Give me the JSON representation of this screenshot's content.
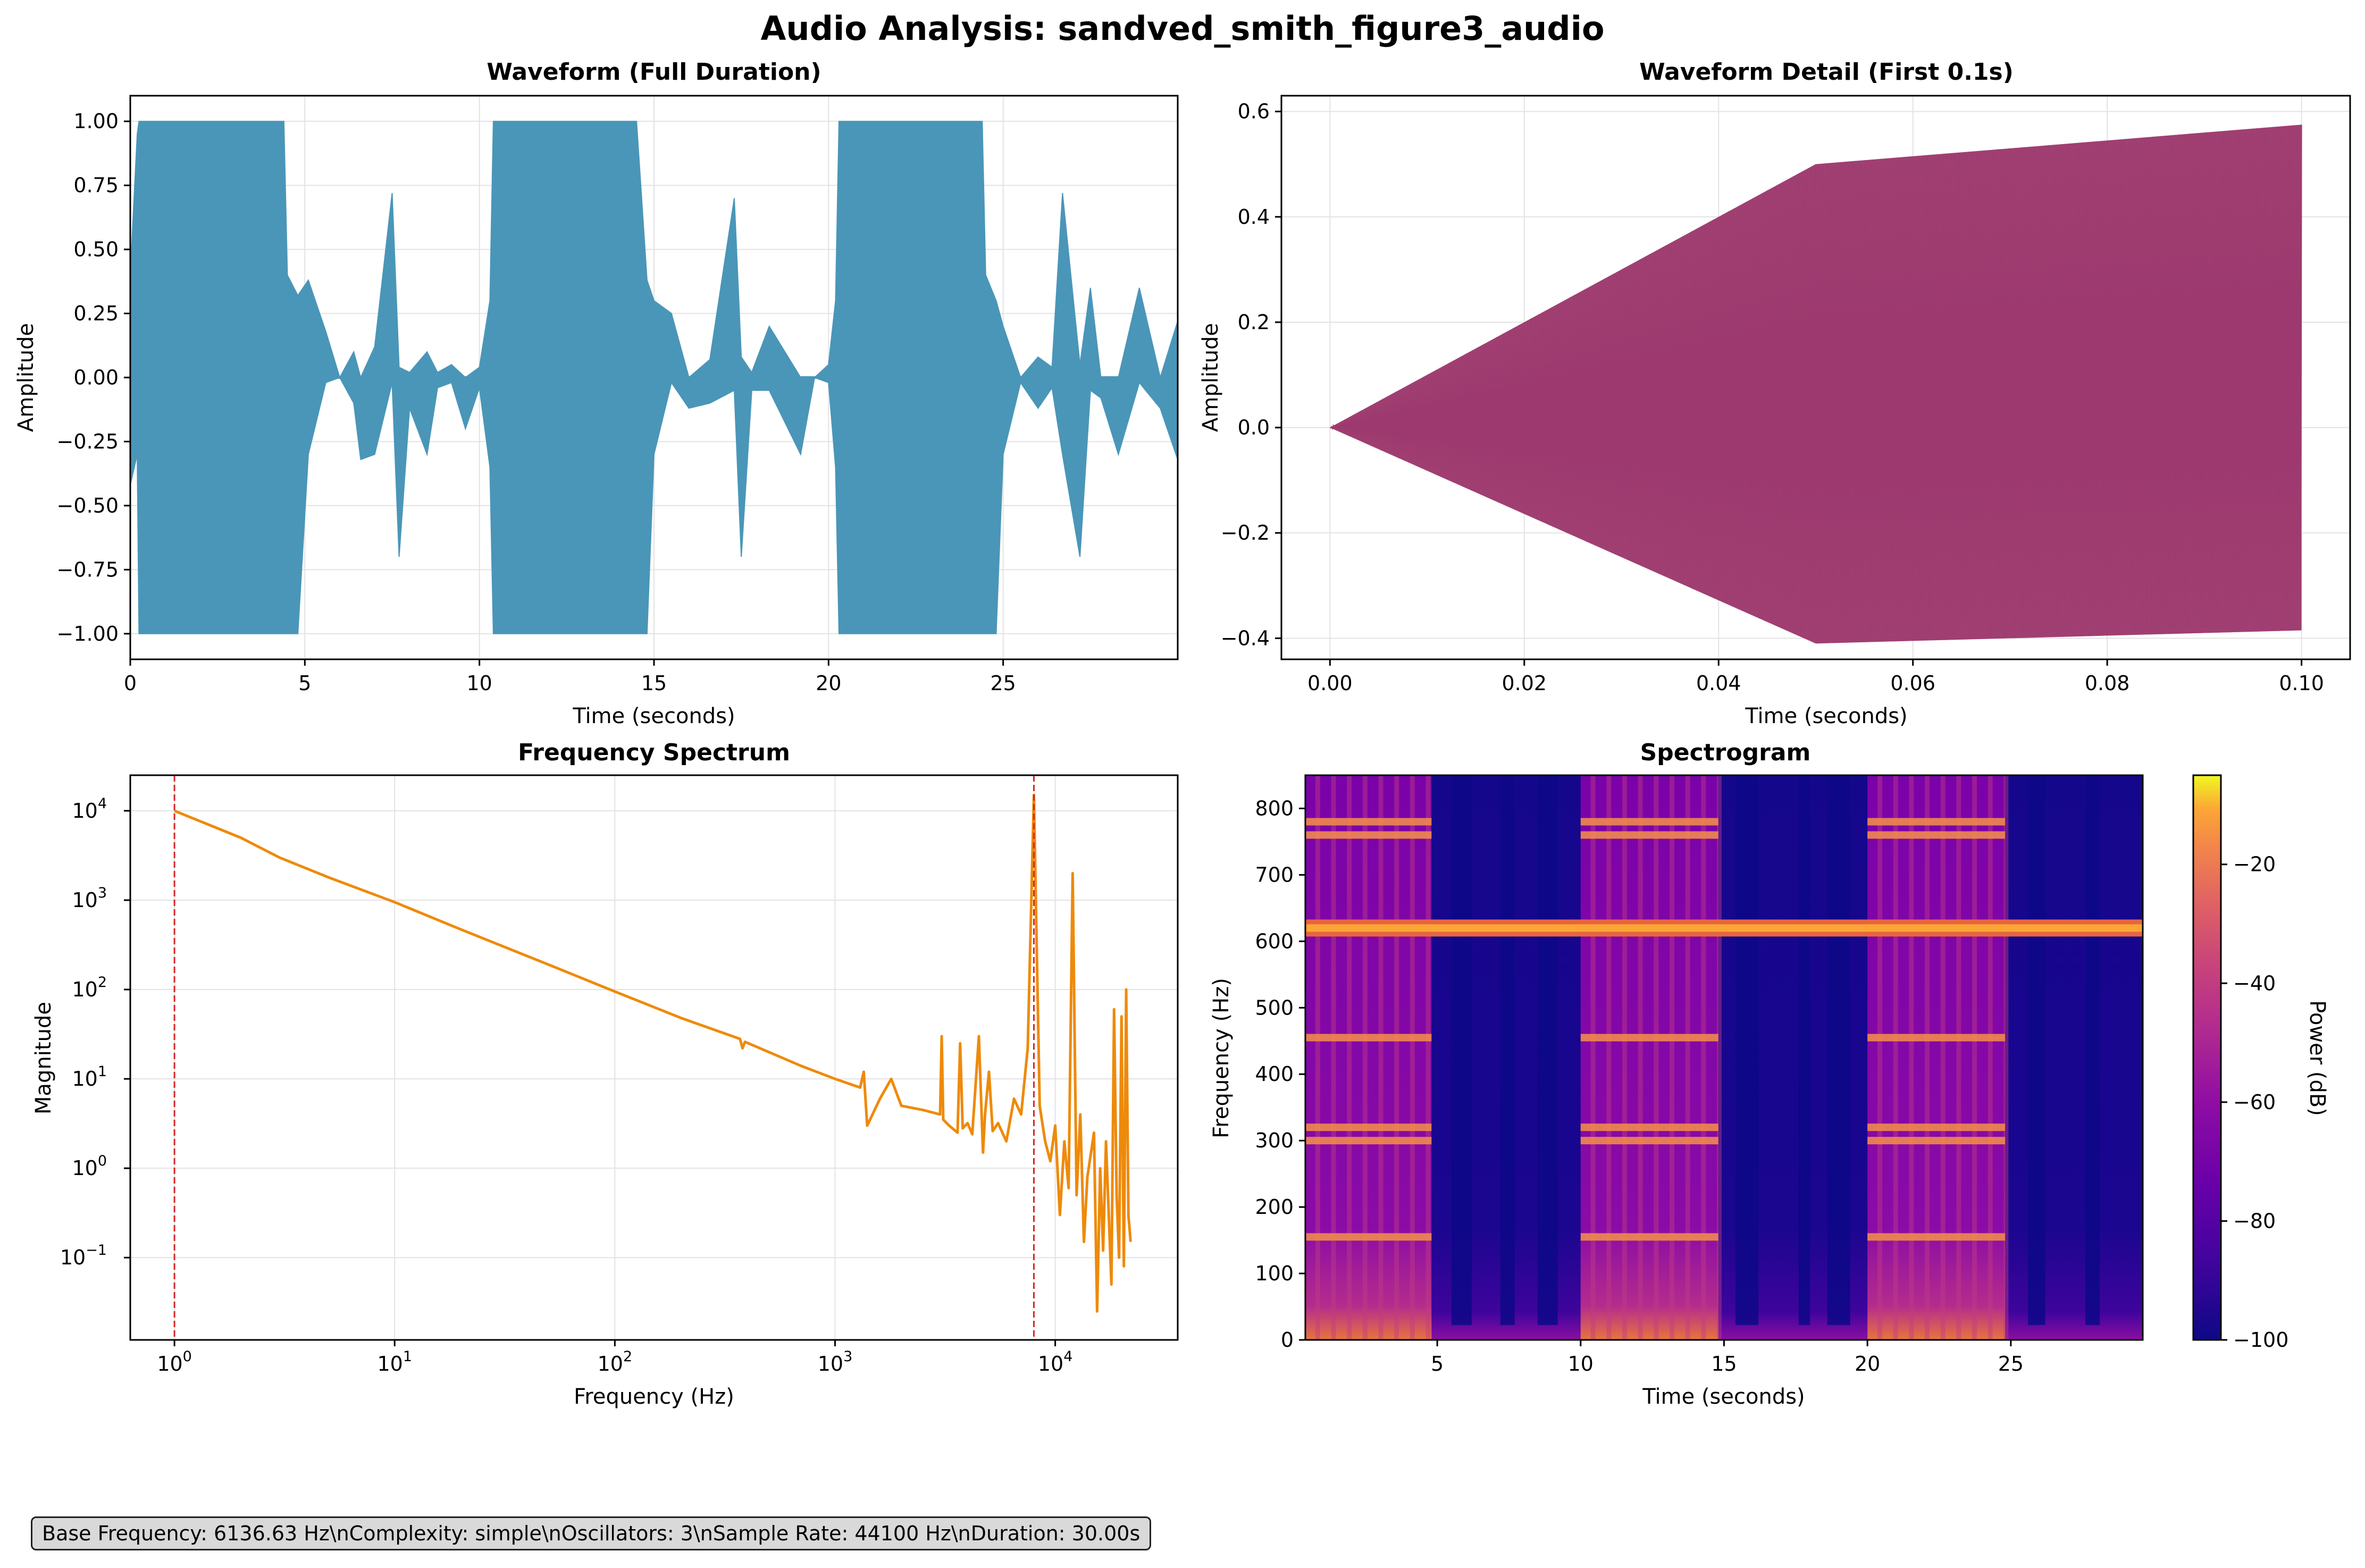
{
  "figure": {
    "title": "Audio Analysis: sandved_smith_figure3_audio",
    "info_text": "Base Frequency: 6136.63 Hz\\nComplexity: simple\\nOscillators: 3\\nSample Rate: 44100 Hz\\nDuration: 30.00s"
  },
  "colors": {
    "waveform": "#4a96b8",
    "detail": "#9d3a6e",
    "spectrum": "#ee8a0a",
    "marker": "#d62728",
    "grid": "#e3e3e3"
  },
  "chart_data": [
    {
      "type": "area",
      "title": "Waveform (Full Duration)",
      "xlabel": "Time (seconds)",
      "ylabel": "Amplitude",
      "xlim": [
        0,
        30
      ],
      "ylim": [
        -1.1,
        1.1
      ],
      "xticks": [
        0,
        5,
        10,
        15,
        20,
        25
      ],
      "xtick_labels": [
        "0",
        "5",
        "10",
        "15",
        "20",
        "25"
      ],
      "yticks": [
        -1.0,
        -0.75,
        -0.5,
        -0.25,
        0.0,
        0.25,
        0.5,
        0.75,
        1.0
      ],
      "ytick_labels": [
        "−1.00",
        "−0.75",
        "−0.50",
        "−0.25",
        "0.00",
        "0.25",
        "0.50",
        "0.75",
        "1.00"
      ],
      "grid": true,
      "envelope": {
        "t": [
          0,
          0.2,
          0.25,
          0.5,
          0.6,
          1.3,
          1.4,
          2.4,
          2.5,
          3.4,
          3.5,
          4.4,
          4.5,
          4.8,
          5.1,
          5.6,
          6.0,
          6.4,
          6.6,
          7.0,
          7.5,
          7.7,
          8.0,
          8.5,
          8.8,
          9.2,
          9.6,
          10.0,
          10.3,
          10.4,
          10.6,
          11.3,
          11.4,
          12.4,
          12.5,
          13.4,
          13.5,
          14.4,
          14.5,
          14.8,
          15.0,
          15.5,
          16.0,
          16.6,
          17.3,
          17.5,
          17.8,
          18.3,
          19.2,
          19.6,
          20.0,
          20.2,
          20.3,
          20.6,
          21.3,
          21.4,
          22.4,
          22.5,
          23.4,
          23.5,
          24.4,
          24.5,
          24.8,
          25.0,
          25.5,
          26.0,
          26.4,
          26.7,
          27.2,
          27.5,
          27.8,
          28.3,
          28.9,
          29.5,
          30.0
        ],
        "upper": [
          0.4,
          0.95,
          1.0,
          1.0,
          1.0,
          1.0,
          1.0,
          1.0,
          1.0,
          1.0,
          1.0,
          1.0,
          0.4,
          0.32,
          0.38,
          0.18,
          0.0,
          0.1,
          0.0,
          0.12,
          0.72,
          0.04,
          0.02,
          0.1,
          0.02,
          0.05,
          0.0,
          0.04,
          0.3,
          1.0,
          1.0,
          1.0,
          1.0,
          1.0,
          1.0,
          1.0,
          1.0,
          1.0,
          1.0,
          0.38,
          0.3,
          0.25,
          0.0,
          0.07,
          0.7,
          0.08,
          0.02,
          0.2,
          0.0,
          0.0,
          0.05,
          0.3,
          1.0,
          1.0,
          1.0,
          1.0,
          1.0,
          1.0,
          1.0,
          1.0,
          1.0,
          0.4,
          0.3,
          0.2,
          0.0,
          0.08,
          0.04,
          0.72,
          0.05,
          0.35,
          0.0,
          0.0,
          0.35,
          0.0,
          0.22
        ],
        "lower": [
          -0.42,
          -0.3,
          -1.0,
          -1.0,
          -1.0,
          -1.0,
          -1.0,
          -1.0,
          -1.0,
          -1.0,
          -1.0,
          -1.0,
          -1.0,
          -1.0,
          -0.3,
          -0.02,
          0.0,
          -0.1,
          -0.32,
          -0.3,
          -0.02,
          -0.7,
          -0.12,
          -0.3,
          -0.04,
          -0.02,
          -0.2,
          -0.04,
          -0.35,
          -1.0,
          -1.0,
          -1.0,
          -1.0,
          -1.0,
          -1.0,
          -1.0,
          -1.0,
          -1.0,
          -1.0,
          -1.0,
          -0.3,
          -0.02,
          -0.12,
          -0.1,
          -0.05,
          -0.7,
          -0.05,
          -0.05,
          -0.3,
          0.0,
          -0.02,
          -0.35,
          -1.0,
          -1.0,
          -1.0,
          -1.0,
          -1.0,
          -1.0,
          -1.0,
          -1.0,
          -1.0,
          -1.0,
          -1.0,
          -0.3,
          -0.02,
          -0.12,
          -0.04,
          -0.3,
          -0.7,
          -0.05,
          -0.08,
          -0.3,
          -0.02,
          -0.12,
          -0.32
        ]
      }
    },
    {
      "type": "area",
      "title": "Waveform Detail (First 0.1s)",
      "xlabel": "Time (seconds)",
      "ylabel": "Amplitude",
      "xlim": [
        -0.005,
        0.105
      ],
      "ylim": [
        -0.44,
        0.63
      ],
      "xticks": [
        0.0,
        0.02,
        0.04,
        0.06,
        0.08,
        0.1
      ],
      "xtick_labels": [
        "0.00",
        "0.02",
        "0.04",
        "0.06",
        "0.08",
        "0.10"
      ],
      "yticks": [
        -0.4,
        -0.2,
        0.0,
        0.2,
        0.4,
        0.6
      ],
      "ytick_labels": [
        "−0.4",
        "−0.2",
        "0.0",
        "0.2",
        "0.4",
        "0.6"
      ],
      "grid": true,
      "envelope": {
        "t": [
          0.0,
          0.05,
          0.06,
          0.07,
          0.08,
          0.09,
          0.1
        ],
        "upper": [
          0.0,
          0.5,
          0.515,
          0.53,
          0.545,
          0.56,
          0.575
        ],
        "lower": [
          0.0,
          -0.41,
          -0.405,
          -0.4,
          -0.395,
          -0.39,
          -0.385
        ]
      }
    },
    {
      "type": "line",
      "title": "Frequency Spectrum",
      "xlabel": "Frequency (Hz)",
      "ylabel": "Magnitude",
      "xscale": "log",
      "yscale": "log",
      "xlim": [
        0.63,
        36000
      ],
      "ylim": [
        0.012,
        25000
      ],
      "xticks": [
        1,
        10,
        100,
        1000,
        10000
      ],
      "xtick_labels": [
        "10",
        "10",
        "10",
        "10",
        "10"
      ],
      "xtick_exponents": [
        "0",
        "1",
        "2",
        "3",
        "4"
      ],
      "yticks": [
        0.1,
        1,
        10,
        100,
        1000,
        10000
      ],
      "ytick_labels": [
        "10",
        "10",
        "10",
        "10",
        "10",
        "10"
      ],
      "ytick_exponents": [
        "−1",
        "0",
        "1",
        "2",
        "3",
        "4"
      ],
      "grid": true,
      "markers_x": [
        1,
        8000
      ],
      "series": [
        {
          "x": [
            1,
            2,
            3,
            5,
            10,
            20,
            50,
            100,
            200,
            370,
            380,
            390,
            700,
            1000,
            1300,
            1350,
            1400,
            1600,
            1800,
            2000,
            2500,
            3000,
            3050,
            3100,
            3300,
            3600,
            3700,
            3800,
            4000,
            4200,
            4500,
            4700,
            4800,
            5000,
            5200,
            5500,
            6000,
            6500,
            7000,
            7500,
            8000,
            8500,
            9000,
            9500,
            10000,
            10500,
            11000,
            11500,
            12000,
            12500,
            13000,
            13500,
            14000,
            15000,
            15500,
            16000,
            16500,
            17000,
            18000,
            18500,
            19000,
            19500,
            20000,
            20500,
            21000,
            21500,
            22000
          ],
          "y": [
            10000,
            5000,
            3000,
            1800,
            950,
            470,
            190,
            95,
            48,
            28,
            22,
            26,
            14,
            10,
            8,
            12,
            3,
            6,
            10,
            5,
            4.5,
            4,
            30,
            3.5,
            3,
            2.5,
            25,
            2.8,
            3.2,
            2.4,
            30,
            1.5,
            4,
            12,
            2.6,
            3.2,
            2,
            6,
            4,
            22,
            15000,
            5,
            2,
            1.2,
            3,
            0.3,
            2,
            0.6,
            2000,
            0.5,
            4,
            0.15,
            0.8,
            2.5,
            0.025,
            1,
            0.12,
            2,
            0.05,
            60,
            0.5,
            0.1,
            50,
            0.08,
            100,
            0.3,
            0.15
          ]
        }
      ]
    },
    {
      "type": "heatmap",
      "title": "Spectrogram",
      "xlabel": "Time (seconds)",
      "ylabel": "Frequency (Hz)",
      "xlim": [
        0.4,
        29.6
      ],
      "ylim": [
        0,
        850
      ],
      "xticks": [
        5,
        10,
        15,
        20,
        25
      ],
      "xtick_labels": [
        "5",
        "10",
        "15",
        "20",
        "25"
      ],
      "yticks": [
        0,
        100,
        200,
        300,
        400,
        500,
        600,
        700,
        800
      ],
      "ytick_labels": [
        "0",
        "100",
        "200",
        "300",
        "400",
        "500",
        "600",
        "700",
        "800"
      ],
      "colorbar": {
        "label": "Power (dB)",
        "range": [
          -100,
          -5
        ],
        "ticks": [
          -100,
          -80,
          -60,
          -40,
          -20
        ],
        "tick_labels": [
          "−100",
          "−80",
          "−60",
          "−40",
          "−20"
        ]
      },
      "active_intervals": [
        [
          0.4,
          4.8
        ],
        [
          10.0,
          14.8
        ],
        [
          20.0,
          24.8
        ]
      ],
      "tonal_band_hz": 620,
      "harmonic_bands_hz": [
        155,
        300,
        320,
        455,
        760,
        780
      ]
    }
  ]
}
